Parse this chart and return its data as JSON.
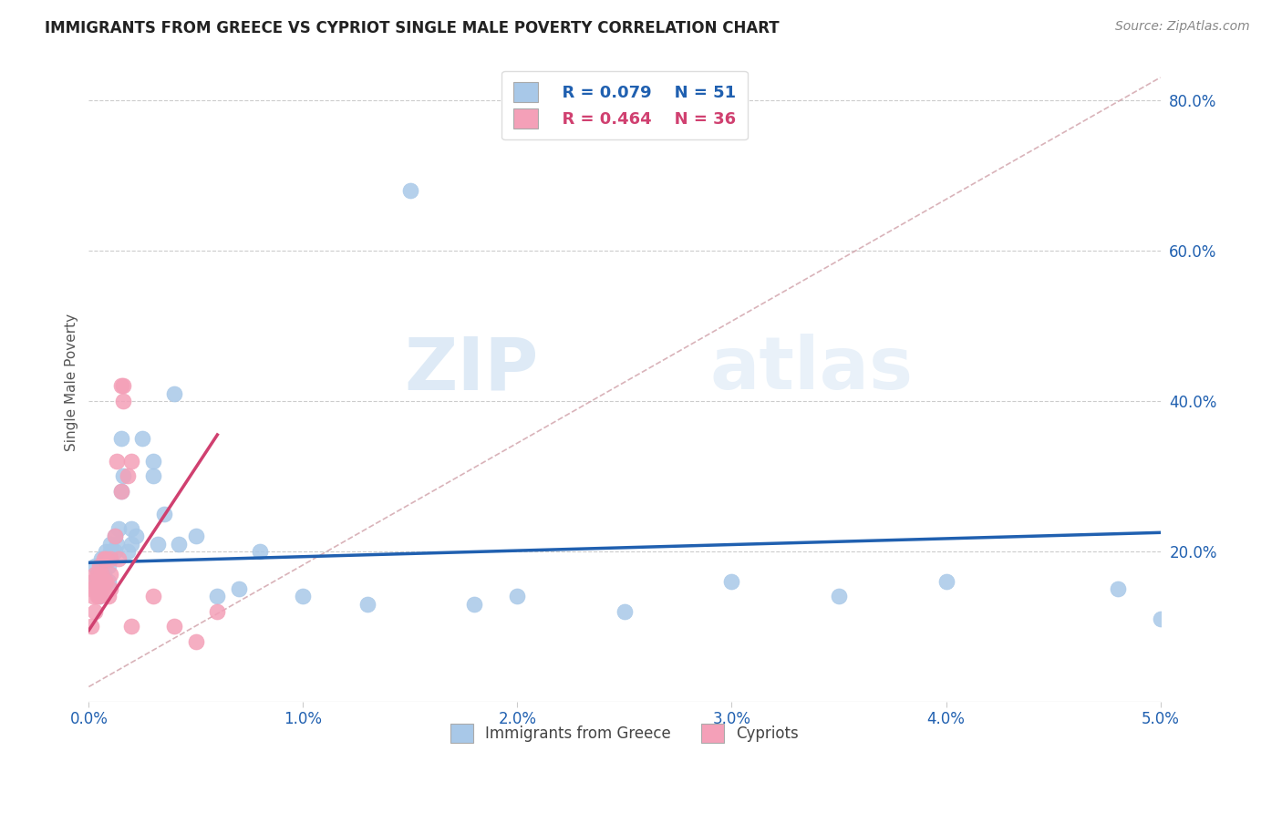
{
  "title": "IMMIGRANTS FROM GREECE VS CYPRIOT SINGLE MALE POVERTY CORRELATION CHART",
  "source": "Source: ZipAtlas.com",
  "ylabel_left": "Single Male Poverty",
  "x_tick_labels": [
    "0.0%",
    "1.0%",
    "2.0%",
    "3.0%",
    "4.0%",
    "5.0%"
  ],
  "y_tick_labels_right": [
    "20.0%",
    "40.0%",
    "60.0%",
    "80.0%"
  ],
  "legend1_r": "R = 0.079",
  "legend1_n": "N = 51",
  "legend2_r": "R = 0.464",
  "legend2_n": "N = 36",
  "legend1_label": "Immigrants from Greece",
  "legend2_label": "Cypriots",
  "blue_color": "#a8c8e8",
  "pink_color": "#f4a0b8",
  "trendline_blue": "#2060b0",
  "trendline_pink": "#d04070",
  "diag_color": "#d0a0a8",
  "watermark_zip": "ZIP",
  "watermark_atlas": "atlas",
  "blue_scatter_x": [
    0.0002,
    0.0003,
    0.0004,
    0.0004,
    0.0005,
    0.0005,
    0.0006,
    0.0006,
    0.0006,
    0.0007,
    0.0007,
    0.0008,
    0.0008,
    0.0009,
    0.0009,
    0.001,
    0.001,
    0.001,
    0.0012,
    0.0012,
    0.0013,
    0.0014,
    0.0015,
    0.0015,
    0.0016,
    0.0018,
    0.002,
    0.002,
    0.0022,
    0.0025,
    0.003,
    0.003,
    0.0032,
    0.0035,
    0.004,
    0.0042,
    0.005,
    0.006,
    0.007,
    0.008,
    0.01,
    0.013,
    0.015,
    0.018,
    0.02,
    0.025,
    0.03,
    0.035,
    0.04,
    0.048,
    0.05
  ],
  "blue_scatter_y": [
    0.16,
    0.18,
    0.15,
    0.17,
    0.14,
    0.16,
    0.17,
    0.18,
    0.19,
    0.16,
    0.17,
    0.19,
    0.2,
    0.16,
    0.18,
    0.2,
    0.21,
    0.19,
    0.22,
    0.2,
    0.21,
    0.23,
    0.35,
    0.28,
    0.3,
    0.2,
    0.21,
    0.23,
    0.22,
    0.35,
    0.3,
    0.32,
    0.21,
    0.25,
    0.41,
    0.21,
    0.22,
    0.14,
    0.15,
    0.2,
    0.14,
    0.13,
    0.68,
    0.13,
    0.14,
    0.12,
    0.16,
    0.14,
    0.16,
    0.15,
    0.11
  ],
  "pink_scatter_x": [
    0.0001,
    0.0001,
    0.0002,
    0.0002,
    0.0003,
    0.0003,
    0.0003,
    0.0004,
    0.0004,
    0.0005,
    0.0005,
    0.0005,
    0.0006,
    0.0006,
    0.0007,
    0.0007,
    0.0008,
    0.0008,
    0.0009,
    0.001,
    0.001,
    0.001,
    0.0012,
    0.0013,
    0.0014,
    0.0015,
    0.0015,
    0.0016,
    0.0016,
    0.0018,
    0.002,
    0.002,
    0.003,
    0.004,
    0.005,
    0.006
  ],
  "pink_scatter_y": [
    0.15,
    0.1,
    0.16,
    0.14,
    0.17,
    0.15,
    0.12,
    0.17,
    0.14,
    0.18,
    0.16,
    0.14,
    0.17,
    0.15,
    0.19,
    0.16,
    0.19,
    0.16,
    0.14,
    0.19,
    0.17,
    0.15,
    0.22,
    0.32,
    0.19,
    0.42,
    0.28,
    0.42,
    0.4,
    0.3,
    0.32,
    0.1,
    0.14,
    0.1,
    0.08,
    0.12
  ],
  "xlim": [
    0.0,
    0.05
  ],
  "ylim": [
    0.0,
    0.85
  ],
  "figsize": [
    14.06,
    8.92
  ],
  "dpi": 100
}
